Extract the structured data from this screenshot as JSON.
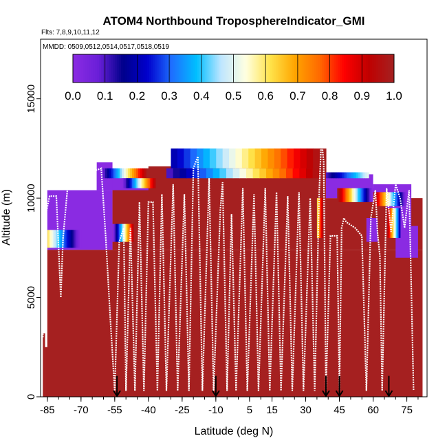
{
  "chart_data": {
    "type": "heatmap",
    "title": "ATOM4 Northbound TroposphereIndicator_GMI",
    "flights_note": "Flts: 7,8,9,10,11,12",
    "dates_note": "MMDD: 0509,0512,0514,0517,0518,0519",
    "xlabel": "Latitude (deg N)",
    "ylabel": "Altitude (m)",
    "xlim": [
      -88,
      84
    ],
    "ylim": [
      0,
      18000
    ],
    "x_ticks": [
      -85,
      -70,
      -55,
      -40,
      -25,
      -10,
      5,
      15,
      30,
      45,
      60,
      75
    ],
    "x_tick_labels": [
      "-85",
      "-70",
      "-55",
      "-40",
      "-25",
      "-10",
      "5",
      "15",
      "30",
      "45",
      "60",
      "75"
    ],
    "y_ticks": [
      0,
      5000,
      10000,
      15000
    ],
    "y_tick_labels": [
      "0",
      "5000",
      "10000",
      "15000"
    ],
    "colorbar": {
      "min": 0.0,
      "max": 1.0,
      "labels": [
        "0.0",
        "0.1",
        "0.2",
        "0.3",
        "0.4",
        "0.5",
        "0.6",
        "0.7",
        "0.8",
        "0.9",
        "1.0"
      ],
      "stops": [
        "#8a2be2",
        "#6a1fd8",
        "#00008b",
        "#0000cd",
        "#1e6fff",
        "#00bfff",
        "#bfe6ff",
        "#ffffe0",
        "#ffe34a",
        "#ffa500",
        "#ff6a00",
        "#ff0000",
        "#c00000",
        "#a52020"
      ]
    },
    "date_arrows_lat": [
      -54,
      -10,
      39,
      45,
      67
    ],
    "background_regions": [
      {
        "lat_min": -87,
        "lat_max": -86,
        "alt_min": 0,
        "alt_max": 3200,
        "value": 1.0
      },
      {
        "lat_min": -86,
        "lat_max": -84,
        "alt_min": 0,
        "alt_max": 2500,
        "value": 1.0
      },
      {
        "lat_min": -84,
        "lat_max": -82,
        "alt_min": 0,
        "alt_max": 2000,
        "value": 1.0
      },
      {
        "lat_min": -82,
        "lat_max": -80,
        "alt_min": 0,
        "alt_max": 1600,
        "value": 1.0
      },
      {
        "lat_min": -80,
        "lat_max": -69,
        "alt_min": 0,
        "alt_max": 1000,
        "value": 1.0
      },
      {
        "lat_min": -69,
        "lat_max": -56,
        "alt_min": 0,
        "alt_max": 400,
        "value": 1.0
      },
      {
        "lat_min": -56,
        "lat_max": 80,
        "alt_min": 0,
        "alt_max": 200,
        "value": 1.0
      },
      {
        "lat_min": -85,
        "lat_max": 82,
        "alt_min": 0,
        "alt_max": 7400,
        "value": 1.0
      },
      {
        "lat_min": -85,
        "lat_max": -56,
        "alt_min": 7400,
        "alt_max": 10400,
        "value": 0.0
      },
      {
        "lat_min": -56,
        "lat_max": 39,
        "alt_min": 7400,
        "alt_max": 10800,
        "value": 1.0
      },
      {
        "lat_min": -63,
        "lat_max": -40,
        "alt_min": 10400,
        "alt_max": 11400,
        "value": 0.0
      },
      {
        "lat_min": -40,
        "lat_max": 39,
        "alt_min": 10800,
        "alt_max": 11600,
        "value": 1.0
      },
      {
        "lat_min": -63,
        "lat_max": -56,
        "alt_min": 10400,
        "alt_max": 11800,
        "value": 0.0
      },
      {
        "lat_min": 39,
        "lat_max": 82,
        "alt_min": 7400,
        "alt_max": 10000,
        "value": 1.0
      },
      {
        "lat_min": 39,
        "lat_max": 60,
        "alt_min": 10000,
        "alt_max": 11200,
        "value": 0.0
      },
      {
        "lat_min": 60,
        "lat_max": 77,
        "alt_min": 10000,
        "alt_max": 10700,
        "value": 0.0
      },
      {
        "lat_min": 66,
        "lat_max": 77,
        "alt_min": 8200,
        "alt_max": 10000,
        "value": 0.0
      },
      {
        "lat_min": 70,
        "lat_max": 80,
        "alt_min": 7000,
        "alt_max": 8600,
        "value": 0.0
      },
      {
        "lat_min": 57,
        "lat_max": 62,
        "alt_min": 7800,
        "alt_max": 9000,
        "value": 0.0
      }
    ],
    "gradient_bands": [
      {
        "lat_min": -62,
        "lat_max": -40,
        "alt_min": 11000,
        "alt_max": 11500,
        "value_start": 0.0,
        "value_end": 1.0
      },
      {
        "lat_min": -30,
        "lat_max": 39,
        "alt_min": 11500,
        "alt_max": 12500,
        "value_start": 0.2,
        "value_end": 1.0
      },
      {
        "lat_min": -32,
        "lat_max": 39,
        "alt_min": 11000,
        "alt_max": 11500,
        "value_start": 0.1,
        "value_end": 1.0
      },
      {
        "lat_min": -52,
        "lat_max": -36,
        "alt_min": 10500,
        "alt_max": 11000,
        "value_start": 0.0,
        "value_end": 1.0
      },
      {
        "lat_min": 39,
        "lat_max": 58,
        "alt_min": 11000,
        "alt_max": 11300,
        "value_start": 0.1,
        "value_end": 0.5
      },
      {
        "lat_min": 44,
        "lat_max": 60,
        "alt_min": 9800,
        "alt_max": 10500,
        "value_start": 1.0,
        "value_end": 0.0
      },
      {
        "lat_min": 60,
        "lat_max": 75,
        "alt_min": 9600,
        "alt_max": 10300,
        "value_start": 1.0,
        "value_end": 0.0
      },
      {
        "lat_min": -85,
        "lat_max": -70,
        "alt_min": 7500,
        "alt_max": 8400,
        "value_start": 0.6,
        "value_end": 0.0
      },
      {
        "lat_min": -56,
        "lat_max": -46,
        "alt_min": 7800,
        "alt_max": 8700,
        "value_start": 0.0,
        "value_end": 1.0
      },
      {
        "lat_min": 35,
        "lat_max": 38,
        "alt_min": 8000,
        "alt_max": 10000,
        "value_start": 0.6,
        "value_end": 1.0
      },
      {
        "lat_min": 66,
        "lat_max": 72,
        "alt_min": 8000,
        "alt_max": 9500,
        "value_start": 1.0,
        "value_end": 0.2
      }
    ],
    "flight_track_alt": [
      [
        -87,
        3000
      ],
      [
        -86,
        9000
      ],
      [
        -84,
        10100
      ],
      [
        -81,
        10100
      ],
      [
        -79,
        5000
      ],
      [
        -78,
        8000
      ],
      [
        -76,
        10500
      ],
      [
        -72,
        10800
      ],
      [
        -66,
        11300
      ],
      [
        -61,
        11500
      ],
      [
        -59,
        8000
      ],
      [
        -57,
        4000
      ],
      [
        -55,
        300
      ],
      [
        -53,
        7800
      ],
      [
        -51,
        8500
      ],
      [
        -50,
        300
      ],
      [
        -48,
        8500
      ],
      [
        -46,
        300
      ],
      [
        -44,
        9800
      ],
      [
        -42,
        300
      ],
      [
        -40,
        9800
      ],
      [
        -38,
        9800
      ],
      [
        -36,
        300
      ],
      [
        -34,
        10200
      ],
      [
        -32,
        300
      ],
      [
        -29,
        10700
      ],
      [
        -27,
        300
      ],
      [
        -24,
        10200
      ],
      [
        -22,
        300
      ],
      [
        -20,
        11500
      ],
      [
        -18,
        12100
      ],
      [
        -16,
        300
      ],
      [
        -13,
        11000
      ],
      [
        -11,
        300
      ],
      [
        -8,
        9400
      ],
      [
        -7,
        10800
      ],
      [
        -5,
        300
      ],
      [
        -3,
        9200
      ],
      [
        -1,
        300
      ],
      [
        2,
        10500
      ],
      [
        4,
        300
      ],
      [
        7,
        10200
      ],
      [
        9,
        300
      ],
      [
        12,
        10500
      ],
      [
        14,
        300
      ],
      [
        17,
        10300
      ],
      [
        19,
        300
      ],
      [
        22,
        10100
      ],
      [
        24,
        300
      ],
      [
        27,
        10300
      ],
      [
        29,
        300
      ],
      [
        32,
        10000
      ],
      [
        34,
        300
      ],
      [
        36,
        10300
      ],
      [
        37,
        13000
      ],
      [
        38,
        11800
      ],
      [
        39,
        300
      ],
      [
        41,
        8100
      ],
      [
        44,
        8100
      ],
      [
        45,
        300
      ],
      [
        46,
        8500
      ],
      [
        47,
        9000
      ],
      [
        48,
        8800
      ],
      [
        52,
        8500
      ],
      [
        55,
        8100
      ],
      [
        57,
        300
      ],
      [
        59,
        9000
      ],
      [
        61,
        10400
      ],
      [
        62,
        8200
      ],
      [
        63,
        7100
      ],
      [
        64,
        300
      ],
      [
        66,
        10500
      ],
      [
        68,
        8300
      ],
      [
        70,
        10700
      ],
      [
        72,
        10000
      ],
      [
        74,
        8500
      ],
      [
        76,
        10400
      ],
      [
        78,
        300
      ]
    ]
  }
}
